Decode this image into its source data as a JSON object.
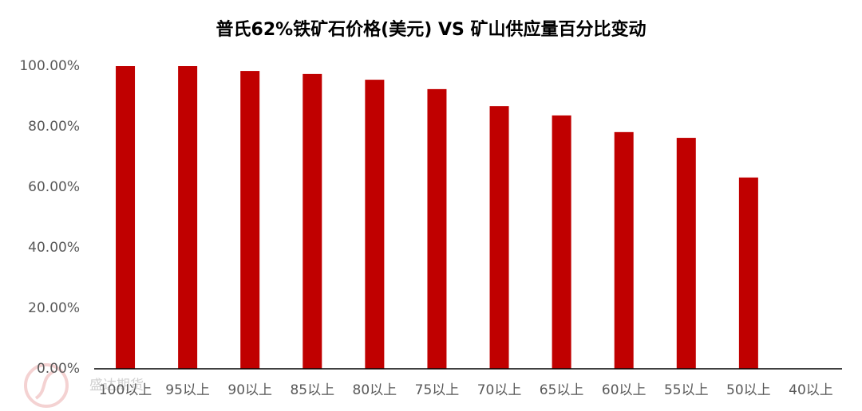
{
  "chart_data": {
    "type": "bar",
    "title": "普氏62%铁矿石价格(美元) VS 矿山供应量百分比变动",
    "categories": [
      "100以上",
      "95以上",
      "90以上",
      "85以上",
      "80以上",
      "75以上",
      "70以上",
      "65以上",
      "60以上",
      "55以上",
      "50以上",
      "40以上"
    ],
    "values": [
      100,
      100,
      98.4,
      97.4,
      95.5,
      92.4,
      86.8,
      83.7,
      78.2,
      76.3,
      63.2,
      null
    ],
    "color": "#c00000",
    "ylim": [
      0,
      100
    ],
    "yticks": [
      {
        "value": 0,
        "label": "0.00%"
      },
      {
        "value": 20,
        "label": "20.00%"
      },
      {
        "value": 40,
        "label": "40.00%"
      },
      {
        "value": 60,
        "label": "60.00%"
      },
      {
        "value": 80,
        "label": "80.00%"
      },
      {
        "value": 100,
        "label": "100.00%"
      }
    ],
    "grid": false,
    "watermark": "盛达期货"
  }
}
